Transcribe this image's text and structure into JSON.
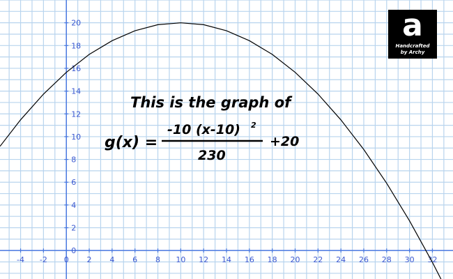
{
  "colors": {
    "grid": "#b8d4ee",
    "axis": "#4a78e0",
    "tick_text": "#3a58d0",
    "curve": "#000000",
    "text": "#000000"
  },
  "annotation": {
    "line1": "This is the graph of",
    "lhs": "g(x) =",
    "numerator": "-10 (x-10)",
    "exponent": "2",
    "denominator": "230",
    "tail": "+20"
  },
  "logo": {
    "letter": "a",
    "line1": "Handcrafted",
    "line2": "by Archy"
  },
  "chart_data": {
    "type": "line",
    "title": "",
    "xlabel": "",
    "ylabel": "",
    "function": "g(x) = -10(x-10)^2/230 + 20",
    "xlim": [
      -5.8,
      33.8
    ],
    "ylim": [
      -2.5,
      22
    ],
    "grid": true,
    "x_ticks": [
      -4,
      -2,
      0,
      2,
      4,
      6,
      8,
      10,
      12,
      14,
      16,
      18,
      20,
      22,
      24,
      26,
      28,
      30,
      32
    ],
    "y_ticks": [
      0,
      2,
      4,
      6,
      8,
      10,
      12,
      14,
      16,
      18,
      20
    ],
    "series": [
      {
        "x": [
          -5.8,
          -4,
          -2,
          0,
          2,
          4,
          6,
          8,
          10,
          12,
          14,
          16,
          18,
          20,
          22,
          24,
          26,
          28,
          30,
          32,
          33
        ],
        "y": [
          9.15,
          11.48,
          13.74,
          15.65,
          17.22,
          18.43,
          19.3,
          19.83,
          20.0,
          19.83,
          19.3,
          18.43,
          17.22,
          15.65,
          13.74,
          11.48,
          8.87,
          5.91,
          2.61,
          -1.04,
          -3.0
        ]
      }
    ]
  }
}
